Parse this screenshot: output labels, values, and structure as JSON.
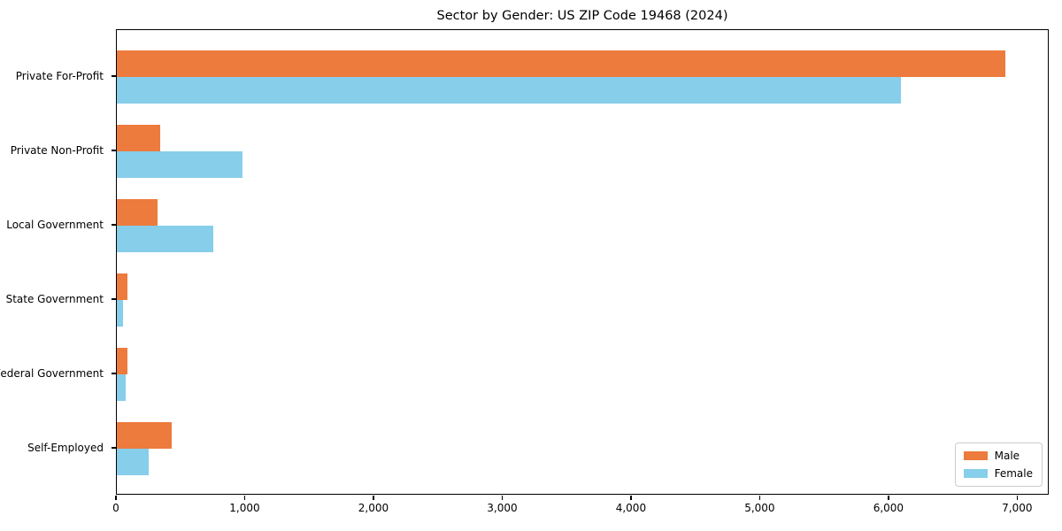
{
  "chart_data": {
    "type": "bar",
    "orientation": "horizontal",
    "title": "Sector by Gender: US ZIP Code 19468 (2024)",
    "categories": [
      "Private For-Profit",
      "Private Non-Profit",
      "Local Government",
      "State Government",
      "Federal Government",
      "Self-Employed"
    ],
    "series": [
      {
        "name": "Male",
        "color": "#ec7b3d",
        "values": [
          6900,
          340,
          315,
          80,
          80,
          425
        ]
      },
      {
        "name": "Female",
        "color": "#87ceeb",
        "values": [
          6090,
          975,
          750,
          50,
          70,
          250
        ]
      }
    ],
    "xlabel": "",
    "ylabel": "",
    "xlim": [
      0,
      7245
    ],
    "xticks": [
      0,
      1000,
      2000,
      3000,
      4000,
      5000,
      6000,
      7000
    ],
    "xtick_labels": [
      "0",
      "1,000",
      "2,000",
      "3,000",
      "4,000",
      "5,000",
      "6,000",
      "7,000"
    ],
    "grid": false,
    "legend_position": "lower right",
    "background_color": "#ffffff",
    "text_color": "#000000"
  }
}
